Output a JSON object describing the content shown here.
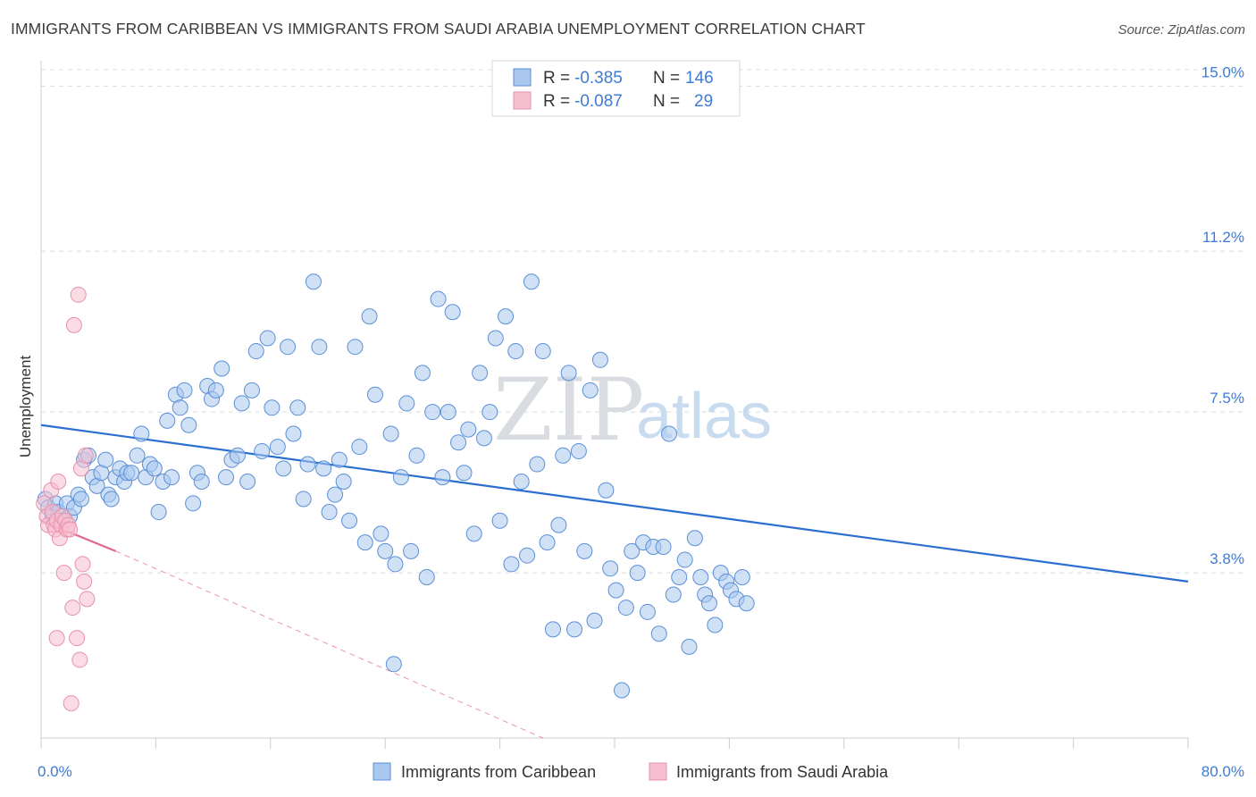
{
  "title": "IMMIGRANTS FROM CARIBBEAN VS IMMIGRANTS FROM SAUDI ARABIA UNEMPLOYMENT CORRELATION CHART",
  "source": "Source: ZipAtlas.com",
  "watermark": {
    "zip": "ZIP",
    "atlas": "atlas"
  },
  "colors": {
    "blue_fill": "#aac8ef",
    "blue_stroke": "#5b8fd6",
    "blue_line": "#2a6fd0",
    "pink_fill": "#f7bfd0",
    "pink_stroke": "#e691ad",
    "pink_line": "#e0688f",
    "grid": "#d8dce2",
    "tick_text": "#3d7bd6"
  },
  "legend": {
    "rows": [
      {
        "r_label": "R =",
        "r_value": "-0.385",
        "n_label": "N =",
        "n_value": "146"
      },
      {
        "r_label": "R =",
        "r_value": "-0.087",
        "n_label": "N =",
        "n_value": "29"
      }
    ]
  },
  "chart_data": {
    "type": "scatter",
    "ylabel": "Unemployment",
    "xlabel": "",
    "xlim": [
      0,
      80
    ],
    "ylim": [
      0,
      15.5
    ],
    "x_tick_labels": [
      "0.0%",
      "80.0%"
    ],
    "y_ticks": [
      3.8,
      7.5,
      11.2,
      15.0
    ],
    "y_tick_labels": [
      "3.8%",
      "7.5%",
      "11.2%",
      "15.0%"
    ],
    "series": [
      {
        "name": "Immigrants from Caribbean",
        "color": "blue",
        "trend": {
          "x": [
            0,
            80
          ],
          "y": [
            7.2,
            3.6
          ]
        },
        "points": [
          [
            0.3,
            5.5
          ],
          [
            0.5,
            5.3
          ],
          [
            0.8,
            5.1
          ],
          [
            1.0,
            5.4
          ],
          [
            1.2,
            5.2
          ],
          [
            1.5,
            5.0
          ],
          [
            1.8,
            5.4
          ],
          [
            2.0,
            5.1
          ],
          [
            2.3,
            5.3
          ],
          [
            2.6,
            5.6
          ],
          [
            2.8,
            5.5
          ],
          [
            3.0,
            6.4
          ],
          [
            3.3,
            6.5
          ],
          [
            3.6,
            6.0
          ],
          [
            3.9,
            5.8
          ],
          [
            4.2,
            6.1
          ],
          [
            4.5,
            6.4
          ],
          [
            4.7,
            5.6
          ],
          [
            4.9,
            5.5
          ],
          [
            5.2,
            6.0
          ],
          [
            5.5,
            6.2
          ],
          [
            5.8,
            5.9
          ],
          [
            6.0,
            6.1
          ],
          [
            6.3,
            6.1
          ],
          [
            6.7,
            6.5
          ],
          [
            7.0,
            7.0
          ],
          [
            7.3,
            6.0
          ],
          [
            7.6,
            6.3
          ],
          [
            7.9,
            6.2
          ],
          [
            8.2,
            5.2
          ],
          [
            8.5,
            5.9
          ],
          [
            8.8,
            7.3
          ],
          [
            9.1,
            6.0
          ],
          [
            9.4,
            7.9
          ],
          [
            9.7,
            7.6
          ],
          [
            10.0,
            8.0
          ],
          [
            10.3,
            7.2
          ],
          [
            10.6,
            5.4
          ],
          [
            10.9,
            6.1
          ],
          [
            11.2,
            5.9
          ],
          [
            11.6,
            8.1
          ],
          [
            11.9,
            7.8
          ],
          [
            12.2,
            8.0
          ],
          [
            12.6,
            8.5
          ],
          [
            12.9,
            6.0
          ],
          [
            13.3,
            6.4
          ],
          [
            13.7,
            6.5
          ],
          [
            14.0,
            7.7
          ],
          [
            14.4,
            5.9
          ],
          [
            14.7,
            8.0
          ],
          [
            15.0,
            8.9
          ],
          [
            15.4,
            6.6
          ],
          [
            15.8,
            9.2
          ],
          [
            16.1,
            7.6
          ],
          [
            16.5,
            6.7
          ],
          [
            16.9,
            6.2
          ],
          [
            17.2,
            9.0
          ],
          [
            17.6,
            7.0
          ],
          [
            17.9,
            7.6
          ],
          [
            18.3,
            5.5
          ],
          [
            18.6,
            6.3
          ],
          [
            19.0,
            10.5
          ],
          [
            19.4,
            9.0
          ],
          [
            19.7,
            6.2
          ],
          [
            20.1,
            5.2
          ],
          [
            20.5,
            5.6
          ],
          [
            20.8,
            6.4
          ],
          [
            21.1,
            5.9
          ],
          [
            21.5,
            5.0
          ],
          [
            21.9,
            9.0
          ],
          [
            22.2,
            6.7
          ],
          [
            22.6,
            4.5
          ],
          [
            22.9,
            9.7
          ],
          [
            23.3,
            7.9
          ],
          [
            23.7,
            4.7
          ],
          [
            24.0,
            4.3
          ],
          [
            24.4,
            7.0
          ],
          [
            24.7,
            4.0
          ],
          [
            25.1,
            6.0
          ],
          [
            25.5,
            7.7
          ],
          [
            25.8,
            4.3
          ],
          [
            26.2,
            6.5
          ],
          [
            26.6,
            8.4
          ],
          [
            26.9,
            3.7
          ],
          [
            27.3,
            7.5
          ],
          [
            27.7,
            10.1
          ],
          [
            28.0,
            6.0
          ],
          [
            28.4,
            7.5
          ],
          [
            28.7,
            9.8
          ],
          [
            29.1,
            6.8
          ],
          [
            29.5,
            6.1
          ],
          [
            29.8,
            7.1
          ],
          [
            30.2,
            4.7
          ],
          [
            30.6,
            8.4
          ],
          [
            30.9,
            6.9
          ],
          [
            31.3,
            7.5
          ],
          [
            31.7,
            9.2
          ],
          [
            32.0,
            5.0
          ],
          [
            32.4,
            9.7
          ],
          [
            32.8,
            4.0
          ],
          [
            33.1,
            8.9
          ],
          [
            33.5,
            5.9
          ],
          [
            33.9,
            4.2
          ],
          [
            34.2,
            10.5
          ],
          [
            34.6,
            6.3
          ],
          [
            35.0,
            8.9
          ],
          [
            35.3,
            4.5
          ],
          [
            35.7,
            2.5
          ],
          [
            36.1,
            4.9
          ],
          [
            36.4,
            6.5
          ],
          [
            36.8,
            8.4
          ],
          [
            37.2,
            2.5
          ],
          [
            37.5,
            6.6
          ],
          [
            37.9,
            4.3
          ],
          [
            38.3,
            8.0
          ],
          [
            38.6,
            2.7
          ],
          [
            39.0,
            8.7
          ],
          [
            39.4,
            5.7
          ],
          [
            39.7,
            3.9
          ],
          [
            40.1,
            3.4
          ],
          [
            40.5,
            1.1
          ],
          [
            40.8,
            3.0
          ],
          [
            41.2,
            4.3
          ],
          [
            41.6,
            3.8
          ],
          [
            42.0,
            4.5
          ],
          [
            42.3,
            2.9
          ],
          [
            42.7,
            4.4
          ],
          [
            43.1,
            2.4
          ],
          [
            43.4,
            4.4
          ],
          [
            43.8,
            7.0
          ],
          [
            44.1,
            3.3
          ],
          [
            44.5,
            3.7
          ],
          [
            44.9,
            4.1
          ],
          [
            45.2,
            2.1
          ],
          [
            45.6,
            4.6
          ],
          [
            46.0,
            3.7
          ],
          [
            46.3,
            3.3
          ],
          [
            46.6,
            3.1
          ],
          [
            47.0,
            2.6
          ],
          [
            47.4,
            3.8
          ],
          [
            47.8,
            3.6
          ],
          [
            48.1,
            3.4
          ],
          [
            48.5,
            3.2
          ],
          [
            48.9,
            3.7
          ],
          [
            49.2,
            3.1
          ],
          [
            24.6,
            1.7
          ]
        ]
      },
      {
        "name": "Immigrants from Saudi Arabia",
        "color": "pink",
        "trend": {
          "x": [
            0,
            5.2
          ],
          "y": [
            5.0,
            4.3
          ]
        },
        "trend_ext": {
          "x": [
            5.2,
            35
          ],
          "y": [
            4.3,
            0
          ]
        },
        "points": [
          [
            0.2,
            5.4
          ],
          [
            0.4,
            5.1
          ],
          [
            0.5,
            4.9
          ],
          [
            0.7,
            5.7
          ],
          [
            0.8,
            5.2
          ],
          [
            0.9,
            4.9
          ],
          [
            1.0,
            4.8
          ],
          [
            1.1,
            5.0
          ],
          [
            1.2,
            5.9
          ],
          [
            1.3,
            4.6
          ],
          [
            1.4,
            4.9
          ],
          [
            1.5,
            5.1
          ],
          [
            1.6,
            3.8
          ],
          [
            1.7,
            5.0
          ],
          [
            1.8,
            4.8
          ],
          [
            1.9,
            4.9
          ],
          [
            2.0,
            4.8
          ],
          [
            2.2,
            3.0
          ],
          [
            2.3,
            9.5
          ],
          [
            2.5,
            2.3
          ],
          [
            2.6,
            10.2
          ],
          [
            2.7,
            1.8
          ],
          [
            2.8,
            6.2
          ],
          [
            2.9,
            4.0
          ],
          [
            3.0,
            3.6
          ],
          [
            3.1,
            6.5
          ],
          [
            3.2,
            3.2
          ],
          [
            1.1,
            2.3
          ],
          [
            2.1,
            0.8
          ]
        ]
      }
    ]
  }
}
